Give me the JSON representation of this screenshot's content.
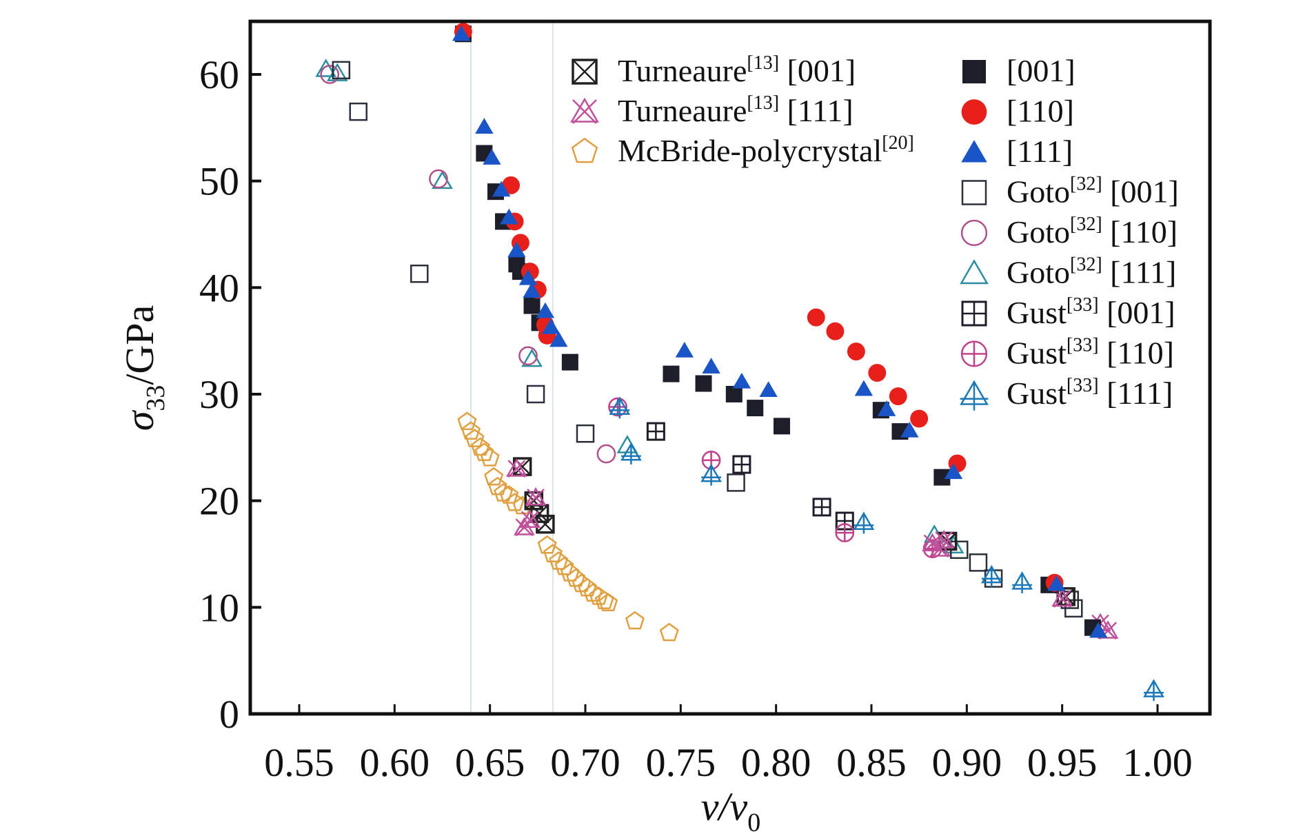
{
  "chart_data": {
    "type": "scatter",
    "title": "",
    "xlabel": "v/v0",
    "xlabel_main": "v/v",
    "xlabel_sub": "0",
    "ylabel": "σ33/GPa",
    "ylabel_sym": "σ",
    "ylabel_sub": "33",
    "ylabel_unit": "/GPa",
    "xlim": [
      0.525,
      1.025
    ],
    "ylim": [
      0,
      65
    ],
    "xticks": [
      0.55,
      0.6,
      0.65,
      0.7,
      0.75,
      0.8,
      0.85,
      0.9,
      0.95,
      1.0
    ],
    "xtick_labels": [
      "0.55",
      "0.60",
      "0.65",
      "0.70",
      "0.75",
      "0.80",
      "0.85",
      "0.90",
      "0.95",
      "1.00"
    ],
    "yticks": [
      0,
      10,
      20,
      30,
      40,
      50,
      60
    ],
    "ytick_labels": [
      "0",
      "10",
      "20",
      "30",
      "40",
      "50",
      "60"
    ],
    "reference_lines_x": [
      0.64,
      0.683
    ],
    "grid": false,
    "legend_placement": "top-right",
    "series": [
      {
        "name": "Turneaure[13] [001]",
        "base": "Turneaure",
        "ref": "[13]",
        "dir": "[001]",
        "marker": "square-x",
        "color": "#222222",
        "fill": "none",
        "x": [
          0.667,
          0.673,
          0.676,
          0.679,
          0.89,
          0.952
        ],
        "y": [
          23.2,
          20.0,
          18.8,
          17.8,
          16.2,
          11.0
        ]
      },
      {
        "name": "Turneaure[13] [111]",
        "base": "Turneaure",
        "ref": "[13]",
        "dir": "[111]",
        "marker": "triangle-x",
        "color": "#c0509a",
        "fill": "none",
        "x": [
          0.664,
          0.668,
          0.671,
          0.674,
          0.882,
          0.886,
          0.888,
          0.95,
          0.97,
          0.974
        ],
        "y": [
          23.0,
          17.5,
          18.2,
          20.3,
          16.0,
          15.5,
          16.3,
          10.8,
          8.5,
          7.8
        ]
      },
      {
        "name": "McBride-polycrystal[20]",
        "base": "McBride-polycrystal",
        "ref": "[20]",
        "dir": "",
        "marker": "pentagon",
        "color": "#e0a040",
        "fill": "none",
        "x": [
          0.638,
          0.64,
          0.642,
          0.645,
          0.647,
          0.65,
          0.652,
          0.654,
          0.657,
          0.66,
          0.663,
          0.667,
          0.68,
          0.683,
          0.686,
          0.689,
          0.692,
          0.695,
          0.698,
          0.701,
          0.704,
          0.707,
          0.71,
          0.712,
          0.726,
          0.744
        ],
        "y": [
          27.4,
          26.5,
          25.8,
          25.0,
          24.5,
          24.0,
          22.2,
          21.3,
          20.7,
          20.5,
          19.8,
          19.5,
          15.8,
          15.0,
          14.3,
          13.8,
          13.2,
          12.7,
          12.2,
          11.8,
          11.3,
          11.0,
          10.6,
          10.4,
          8.7,
          7.6
        ]
      },
      {
        "name": "[001]",
        "base": "",
        "ref": "",
        "dir": "[001]",
        "marker": "square-filled",
        "color": "#1c1f2a",
        "fill": "#1c1f2a",
        "x": [
          0.636,
          0.647,
          0.653,
          0.657,
          0.664,
          0.666,
          0.672,
          0.676,
          0.692,
          0.745,
          0.762,
          0.778,
          0.789,
          0.803,
          0.855,
          0.865,
          0.887,
          0.943,
          0.966
        ],
        "y": [
          63.8,
          52.6,
          49.0,
          46.2,
          42.2,
          41.5,
          38.3,
          36.7,
          33.0,
          31.9,
          31.0,
          30.0,
          28.7,
          27.0,
          28.5,
          26.5,
          22.2,
          12.1,
          8.1
        ]
      },
      {
        "name": "[110]",
        "base": "",
        "ref": "",
        "dir": "[110]",
        "marker": "circle-filled",
        "color": "#e8201c",
        "fill": "#e8201c",
        "x": [
          0.636,
          0.661,
          0.663,
          0.666,
          0.671,
          0.675,
          0.679,
          0.68,
          0.821,
          0.831,
          0.842,
          0.853,
          0.864,
          0.875,
          0.895,
          0.946
        ],
        "y": [
          64.0,
          49.6,
          46.2,
          44.2,
          41.5,
          39.8,
          36.5,
          35.5,
          37.2,
          35.9,
          34.0,
          32.0,
          29.8,
          27.7,
          23.5,
          12.3
        ]
      },
      {
        "name": "[111]",
        "base": "",
        "ref": "",
        "dir": "[111]",
        "marker": "triangle-filled",
        "color": "#1a55c8",
        "fill": "#1a55c8",
        "x": [
          0.635,
          0.647,
          0.651,
          0.656,
          0.66,
          0.664,
          0.67,
          0.672,
          0.679,
          0.682,
          0.686,
          0.752,
          0.766,
          0.782,
          0.796,
          0.846,
          0.858,
          0.87,
          0.893,
          0.947,
          0.969
        ],
        "y": [
          63.8,
          55.1,
          52.2,
          49.2,
          46.6,
          43.5,
          40.9,
          39.7,
          37.8,
          36.3,
          35.1,
          34.1,
          32.6,
          31.2,
          30.4,
          30.5,
          28.6,
          26.6,
          22.7,
          12.2,
          7.8
        ]
      },
      {
        "name": "Goto[32] [001]",
        "base": "Goto",
        "ref": "[32]",
        "dir": "[001]",
        "marker": "square-open",
        "color": "#2a2f3a",
        "fill": "none",
        "x": [
          0.572,
          0.581,
          0.613,
          0.674,
          0.7,
          0.779,
          0.896,
          0.906,
          0.914,
          0.954,
          0.956
        ],
        "y": [
          60.4,
          56.5,
          41.3,
          30.0,
          26.3,
          21.7,
          15.4,
          14.2,
          12.7,
          10.7,
          9.9
        ]
      },
      {
        "name": "Goto[32] [110]",
        "base": "Goto",
        "ref": "[32]",
        "dir": "[110]",
        "marker": "circle-open",
        "color": "#b0508a",
        "fill": "none",
        "x": [
          0.566,
          0.623,
          0.67,
          0.711
        ],
        "y": [
          60.0,
          50.2,
          33.6,
          24.4
        ]
      },
      {
        "name": "Goto[32] [111]",
        "base": "Goto",
        "ref": "[32]",
        "dir": "[111]",
        "marker": "triangle-open",
        "color": "#2a8ea0",
        "fill": "none",
        "x": [
          0.564,
          0.57,
          0.625,
          0.672,
          0.722,
          0.883,
          0.893
        ],
        "y": [
          60.5,
          60.1,
          50.0,
          33.3,
          25.2,
          16.8,
          15.8
        ]
      },
      {
        "name": "Gust[33] [001]",
        "base": "Gust",
        "ref": "[33]",
        "dir": "[001]",
        "marker": "square-plus",
        "color": "#1c1f2a",
        "fill": "none",
        "x": [
          0.737,
          0.782,
          0.824,
          0.836
        ],
        "y": [
          26.5,
          23.4,
          19.4,
          18.1
        ]
      },
      {
        "name": "Gust[33] [110]",
        "base": "Gust",
        "ref": "[33]",
        "dir": "[110]",
        "marker": "circle-plus",
        "color": "#c0408a",
        "fill": "none",
        "x": [
          0.717,
          0.766,
          0.836,
          0.882
        ],
        "y": [
          28.8,
          23.8,
          17.0,
          15.5
        ]
      },
      {
        "name": "Gust[33] [111]",
        "base": "Gust",
        "ref": "[33]",
        "dir": "[111]",
        "marker": "triangle-plus",
        "color": "#1a78b8",
        "fill": "none",
        "x": [
          0.718,
          0.724,
          0.766,
          0.846,
          0.913,
          0.929,
          0.998
        ],
        "y": [
          28.8,
          24.5,
          22.5,
          18.0,
          13.0,
          12.4,
          2.3
        ]
      }
    ]
  }
}
